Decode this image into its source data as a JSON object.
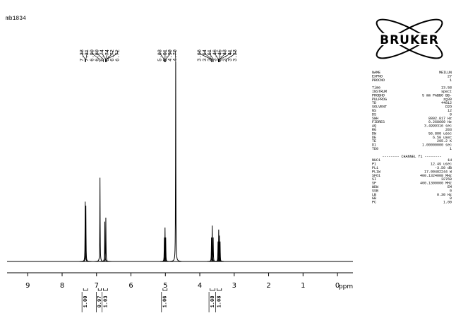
{
  "chart_data": {
    "type": "nmr",
    "title": "mb1834",
    "x_label": "ppm",
    "xlim": [
      9.6,
      -0.45
    ],
    "xticks": [
      9,
      8,
      7,
      6,
      5,
      4,
      3,
      2,
      1,
      0
    ],
    "ylim": [
      0,
      100
    ],
    "color": "#000000",
    "peak_labels": [
      7.33,
      7.31,
      6.9,
      6.8,
      6.74,
      6.74,
      6.72,
      6.72,
      5.03,
      5.01,
      4.99,
      4.7,
      3.66,
      3.64,
      3.61,
      3.46,
      3.45,
      3.43,
      3.41,
      3.23
    ],
    "peak_label_texts": [
      "7.33",
      "7.31",
      "6.90",
      "6.80",
      "6.74",
      "6.74",
      "6.72",
      "6.72",
      "5.03",
      "5.01",
      "4.99",
      "4.70",
      "3.66",
      "3.64",
      "3.61",
      "3.46",
      "3.45",
      "3.43",
      "3.41",
      "3.23"
    ],
    "x": [
      7.33,
      7.31,
      6.9,
      6.76,
      6.73,
      5.03,
      5.01,
      4.99,
      4.7,
      3.66,
      3.64,
      3.61,
      3.47,
      3.45,
      3.43,
      3.41
    ],
    "values": [
      30,
      28,
      42,
      20,
      22,
      12,
      17,
      12,
      100,
      12,
      18,
      12,
      10,
      16,
      13,
      10
    ],
    "integrals": [
      {
        "value": 1.0,
        "label": "1.00"
      },
      {
        "value": 0.97,
        "label": "0.97"
      },
      {
        "value": 1.03,
        "label": "1.03"
      },
      {
        "value": 1.06,
        "label": "1.06"
      },
      {
        "value": 1.08,
        "label": "1.08"
      },
      {
        "value": 1.08,
        "label": "1.08"
      }
    ],
    "integral_regions": [
      [
        7.38,
        7.26
      ],
      [
        6.95,
        6.86
      ],
      [
        6.8,
        6.68
      ],
      [
        5.07,
        4.95
      ],
      [
        3.7,
        3.56
      ],
      [
        3.5,
        3.37
      ]
    ]
  },
  "logo": "BRUKER",
  "parameter_blocks": [
    [
      [
        "NAME",
        "MEILUN"
      ],
      [
        "EXPNO",
        "27"
      ],
      [
        "PROCNO",
        "1"
      ]
    ],
    [
      [
        "Time",
        "13.58"
      ],
      [
        "INSTRUM",
        "spect"
      ],
      [
        "PROBHD",
        "5 mm PABBO BB-"
      ],
      [
        "PULPROG",
        "zg30"
      ],
      [
        "TD",
        "44812"
      ],
      [
        "SOLVENT",
        "D2O"
      ],
      [
        "NS",
        "12"
      ],
      [
        "DS",
        "0"
      ],
      [
        "SWH",
        "8802.817 Hz"
      ],
      [
        "FIDRES",
        "0.268609 Hz"
      ],
      [
        "AQ",
        "3.4999316 sec"
      ],
      [
        "RG",
        "203"
      ],
      [
        "DW",
        "56.800 usec"
      ],
      [
        "DE",
        "6.50 usec"
      ],
      [
        "TE",
        "295.2 K"
      ],
      [
        "D1",
        "1.00000000 sec"
      ],
      [
        "TD0",
        "1"
      ]
    ],
    [
      [
        "NUC1",
        "1H"
      ],
      [
        "P1",
        "12.49 usec"
      ],
      [
        "PL1",
        "-3.50 dB"
      ],
      [
        "PL1W",
        "17.00482244 W"
      ],
      [
        "SFO1",
        "400.1324008 MHz"
      ],
      [
        "SI",
        "32768"
      ],
      [
        "SF",
        "400.1300000 MHz"
      ],
      [
        "WDW",
        "EM"
      ],
      [
        "SSB",
        "0"
      ],
      [
        "LB",
        "0.30 Hz"
      ],
      [
        "GB",
        "0"
      ],
      [
        "PC",
        "1.00"
      ]
    ]
  ],
  "channel_header": "-------- CHANNEL f1 --------"
}
